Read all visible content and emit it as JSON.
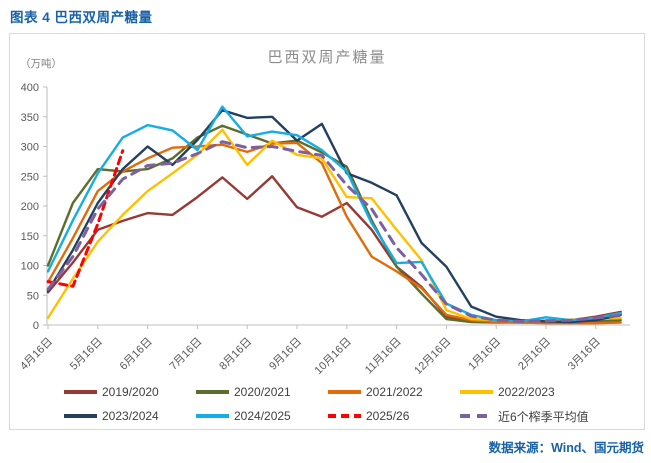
{
  "page": {
    "header": "图表 4  巴西双周产糖量",
    "source": "数据来源：Wind、国元期货"
  },
  "chart_data": {
    "type": "line",
    "title": "巴西双周产糖量",
    "unit_label": "（万吨）",
    "ylim": [
      0,
      400
    ],
    "y_ticks": [
      0,
      50,
      100,
      150,
      200,
      250,
      300,
      350,
      400
    ],
    "grid": false,
    "legend_position": "bottom",
    "x": [
      "4月16日",
      "5月1日",
      "5月16日",
      "6月1日",
      "6月16日",
      "7月1日",
      "7月16日",
      "8月1日",
      "8月16日",
      "9月1日",
      "9月16日",
      "10月1日",
      "10月16日",
      "11月1日",
      "11月16日",
      "12月1日",
      "12月16日",
      "1月1日",
      "1月16日",
      "2月1日",
      "2月16日",
      "3月1日",
      "3月16日",
      "4月1日"
    ],
    "x_tick_label_indices": [
      0,
      2,
      4,
      6,
      8,
      10,
      12,
      14,
      16,
      18,
      20,
      22
    ],
    "series": [
      {
        "name": "2019/2020",
        "color": "#963A35",
        "dash": null,
        "values": [
          55,
          105,
          160,
          175,
          188,
          185,
          215,
          248,
          212,
          250,
          198,
          182,
          205,
          160,
          98,
          64,
          14,
          8,
          6,
          5,
          5,
          8,
          14,
          22
        ]
      },
      {
        "name": "2020/2021",
        "color": "#5C6E2D",
        "dash": null,
        "values": [
          100,
          205,
          262,
          258,
          262,
          280,
          315,
          335,
          320,
          305,
          310,
          290,
          266,
          176,
          98,
          53,
          10,
          5,
          4,
          4,
          4,
          5,
          6,
          8
        ]
      },
      {
        "name": "2021/2022",
        "color": "#E06B0A",
        "dash": null,
        "values": [
          72,
          146,
          225,
          258,
          280,
          298,
          300,
          303,
          291,
          305,
          306,
          272,
          182,
          115,
          90,
          62,
          17,
          8,
          5,
          4,
          3,
          3,
          3,
          4
        ]
      },
      {
        "name": "2022/2023",
        "color": "#FFC000",
        "dash": null,
        "values": [
          12,
          78,
          140,
          185,
          225,
          255,
          286,
          328,
          269,
          310,
          286,
          280,
          215,
          213,
          160,
          109,
          25,
          10,
          8,
          8,
          8,
          9,
          10,
          12
        ]
      },
      {
        "name": "2023/2024",
        "color": "#24405F",
        "dash": null,
        "values": [
          57,
          126,
          205,
          262,
          300,
          269,
          311,
          361,
          348,
          350,
          310,
          338,
          255,
          239,
          218,
          138,
          98,
          31,
          14,
          8,
          6,
          5,
          8,
          17
        ]
      },
      {
        "name": "2024/2025",
        "color": "#14AEE6",
        "dash": null,
        "values": [
          90,
          176,
          255,
          315,
          336,
          327,
          294,
          367,
          317,
          325,
          319,
          294,
          258,
          171,
          104,
          106,
          36,
          17,
          8,
          6,
          13,
          8,
          12,
          20
        ]
      },
      {
        "name": "2025/26",
        "color": "#FF0000",
        "dash": "7 5",
        "values": [
          73,
          65,
          170,
          293
        ]
      },
      {
        "name": "近6个榨季平均值",
        "color": "#7D60A0",
        "dash": "9 7",
        "values": [
          60,
          115,
          195,
          245,
          268,
          272,
          288,
          308,
          298,
          300,
          292,
          285,
          235,
          195,
          130,
          85,
          35,
          15,
          8,
          6,
          7,
          8,
          12,
          16
        ]
      }
    ]
  }
}
